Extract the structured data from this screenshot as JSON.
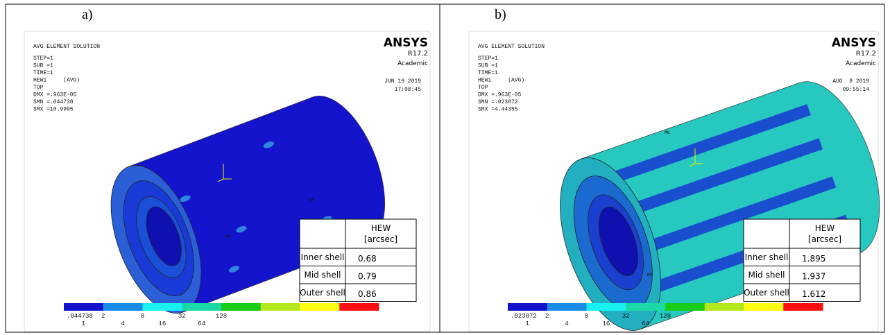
{
  "panels": [
    {
      "label": "a)",
      "header": {
        "title": "AVG ELEMENT SOLUTION",
        "lines": [
          "STEP=1",
          "SUB =1",
          "TIME=1",
          "HEW1     (AVG)",
          "TOP",
          "DMX =.963E-05",
          "SMN =.044738",
          "SMX =10.9995"
        ]
      },
      "logo": {
        "brand": "ANSYS",
        "version": "R17.2",
        "edition": "Academic",
        "date": "JUN 19 2019",
        "time": "17:08:45"
      },
      "markers": {
        "min": "MN",
        "max": "MX"
      },
      "table": {
        "header": [
          "HEW",
          "[arcsec]"
        ],
        "rows": [
          [
            "Inner shell",
            0.68
          ],
          [
            "Mid shell",
            0.79
          ],
          [
            "Outer shell",
            0.86
          ]
        ]
      },
      "colorbar": [
        ".044738",
        "1",
        "2",
        "4",
        "8",
        "16",
        "32",
        "64",
        "128"
      ]
    },
    {
      "label": "b)",
      "header": {
        "title": "AVG ELEMENT SOLUTION",
        "lines": [
          "STEP=1",
          "SUB =1",
          "TIME=1",
          "HEW1     (AVG)",
          "TOP",
          "DMX =.963E-05",
          "SMN =.023872",
          "SMX =4.44355"
        ]
      },
      "logo": {
        "brand": "ANSYS",
        "version": "R17.2",
        "edition": "Academic",
        "date": "AUG  8 2019",
        "time": "09:55:14"
      },
      "markers": {
        "min": "MN",
        "max": "MX"
      },
      "table": {
        "header": [
          "HEW",
          "[arcsec]"
        ],
        "rows": [
          [
            "Inner shell",
            1.895
          ],
          [
            "Mid shell",
            1.937
          ],
          [
            "Outer shell",
            1.612
          ]
        ]
      },
      "colorbar": [
        ".023872",
        "1",
        "2",
        "4",
        "8",
        "16",
        "32",
        "64",
        "128"
      ]
    }
  ]
}
